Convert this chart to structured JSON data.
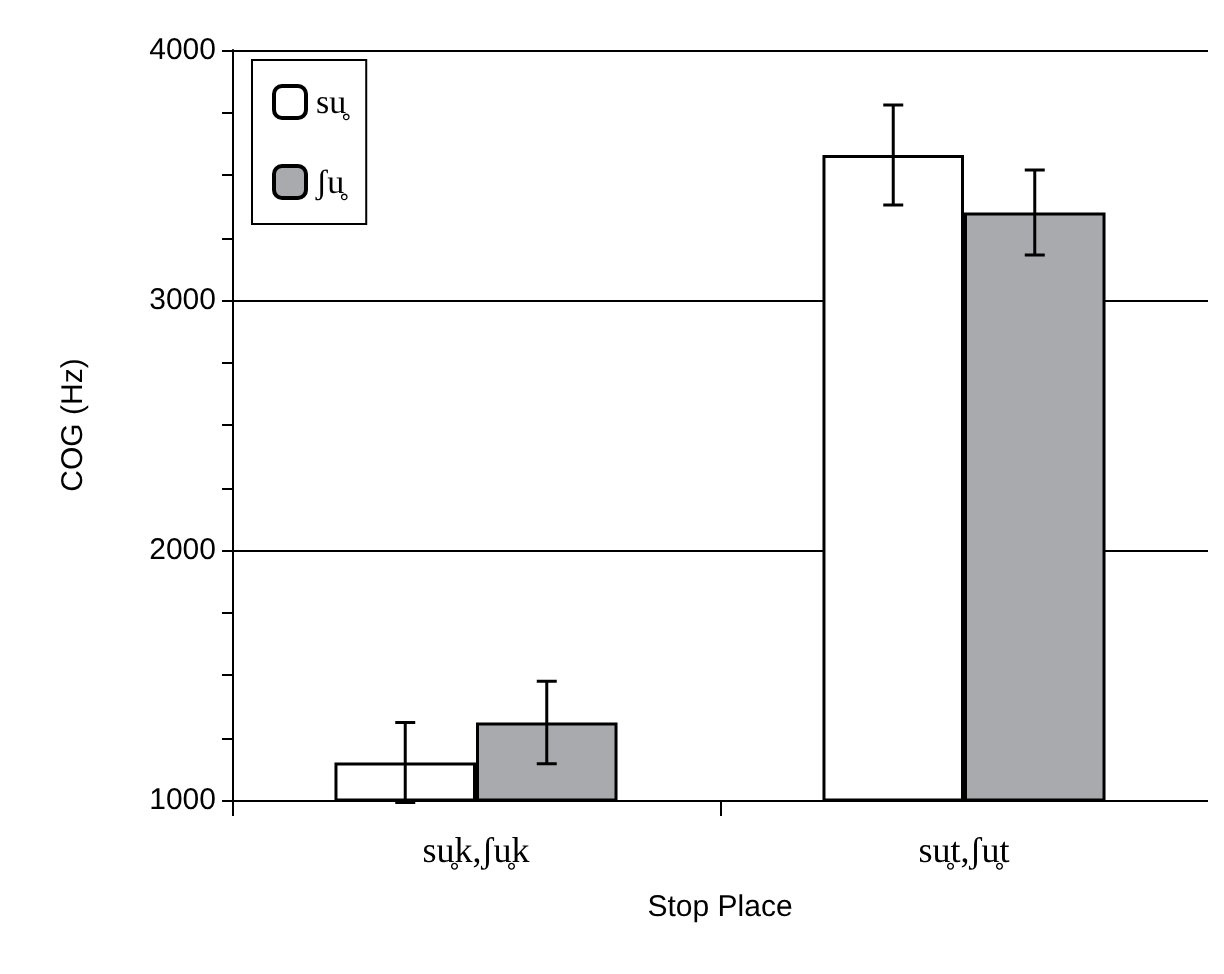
{
  "chart_data": {
    "type": "bar",
    "xlabel": "Stop Place",
    "ylabel": "COG (Hz)",
    "categories": [
      "su̥k,ʃu̥k",
      "su̥t,ʃu̥t"
    ],
    "series": [
      {
        "name": "su̥",
        "color": "#ffffff",
        "values": [
          1150,
          3580
        ],
        "errors": [
          160,
          200
        ]
      },
      {
        "name": "ʃu̥",
        "color": "#a9aaad",
        "values": [
          1310,
          3350
        ],
        "errors": [
          165,
          170
        ]
      }
    ],
    "ylim": [
      1000,
      4000
    ],
    "yticks": [
      1000,
      {
        "value": 1250,
        "label": null
      },
      {
        "value": 1500,
        "label": null
      },
      {
        "value": 1750,
        "label": null
      },
      2000,
      {
        "value": 2250,
        "label": null
      },
      {
        "value": 2500,
        "label": null
      },
      {
        "value": 2750,
        "label": null
      },
      3000,
      {
        "value": 3250,
        "label": null
      },
      {
        "value": 3500,
        "label": null
      },
      {
        "value": 3750,
        "label": null
      },
      4000
    ],
    "grid": "y",
    "legend": "top left"
  }
}
